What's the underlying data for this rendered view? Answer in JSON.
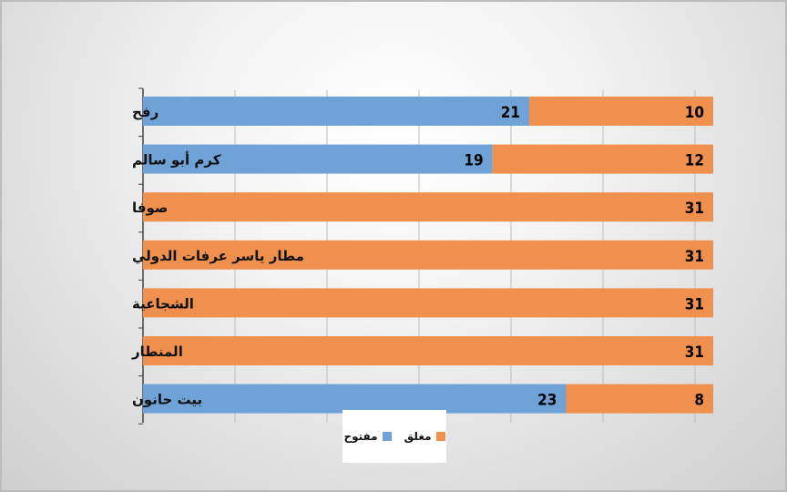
{
  "chart_data": {
    "type": "bar",
    "orientation": "horizontal",
    "stacked": true,
    "categories": [
      "رفح",
      "كرم أبو سالم",
      "صوفا",
      "مطار ياسر عرفات الدولي",
      "الشجاعية",
      "المنطار",
      "بيت حانون"
    ],
    "series": [
      {
        "name": "مفتوح",
        "color": "#6fa3d8",
        "values": [
          21,
          19,
          0,
          0,
          0,
          0,
          23
        ]
      },
      {
        "name": "مغلق",
        "color": "#f0904e",
        "values": [
          10,
          12,
          31,
          31,
          31,
          31,
          8
        ]
      }
    ],
    "xlim": [
      0,
      31
    ],
    "grid": true,
    "legend": "bottom",
    "value_labels": true
  }
}
